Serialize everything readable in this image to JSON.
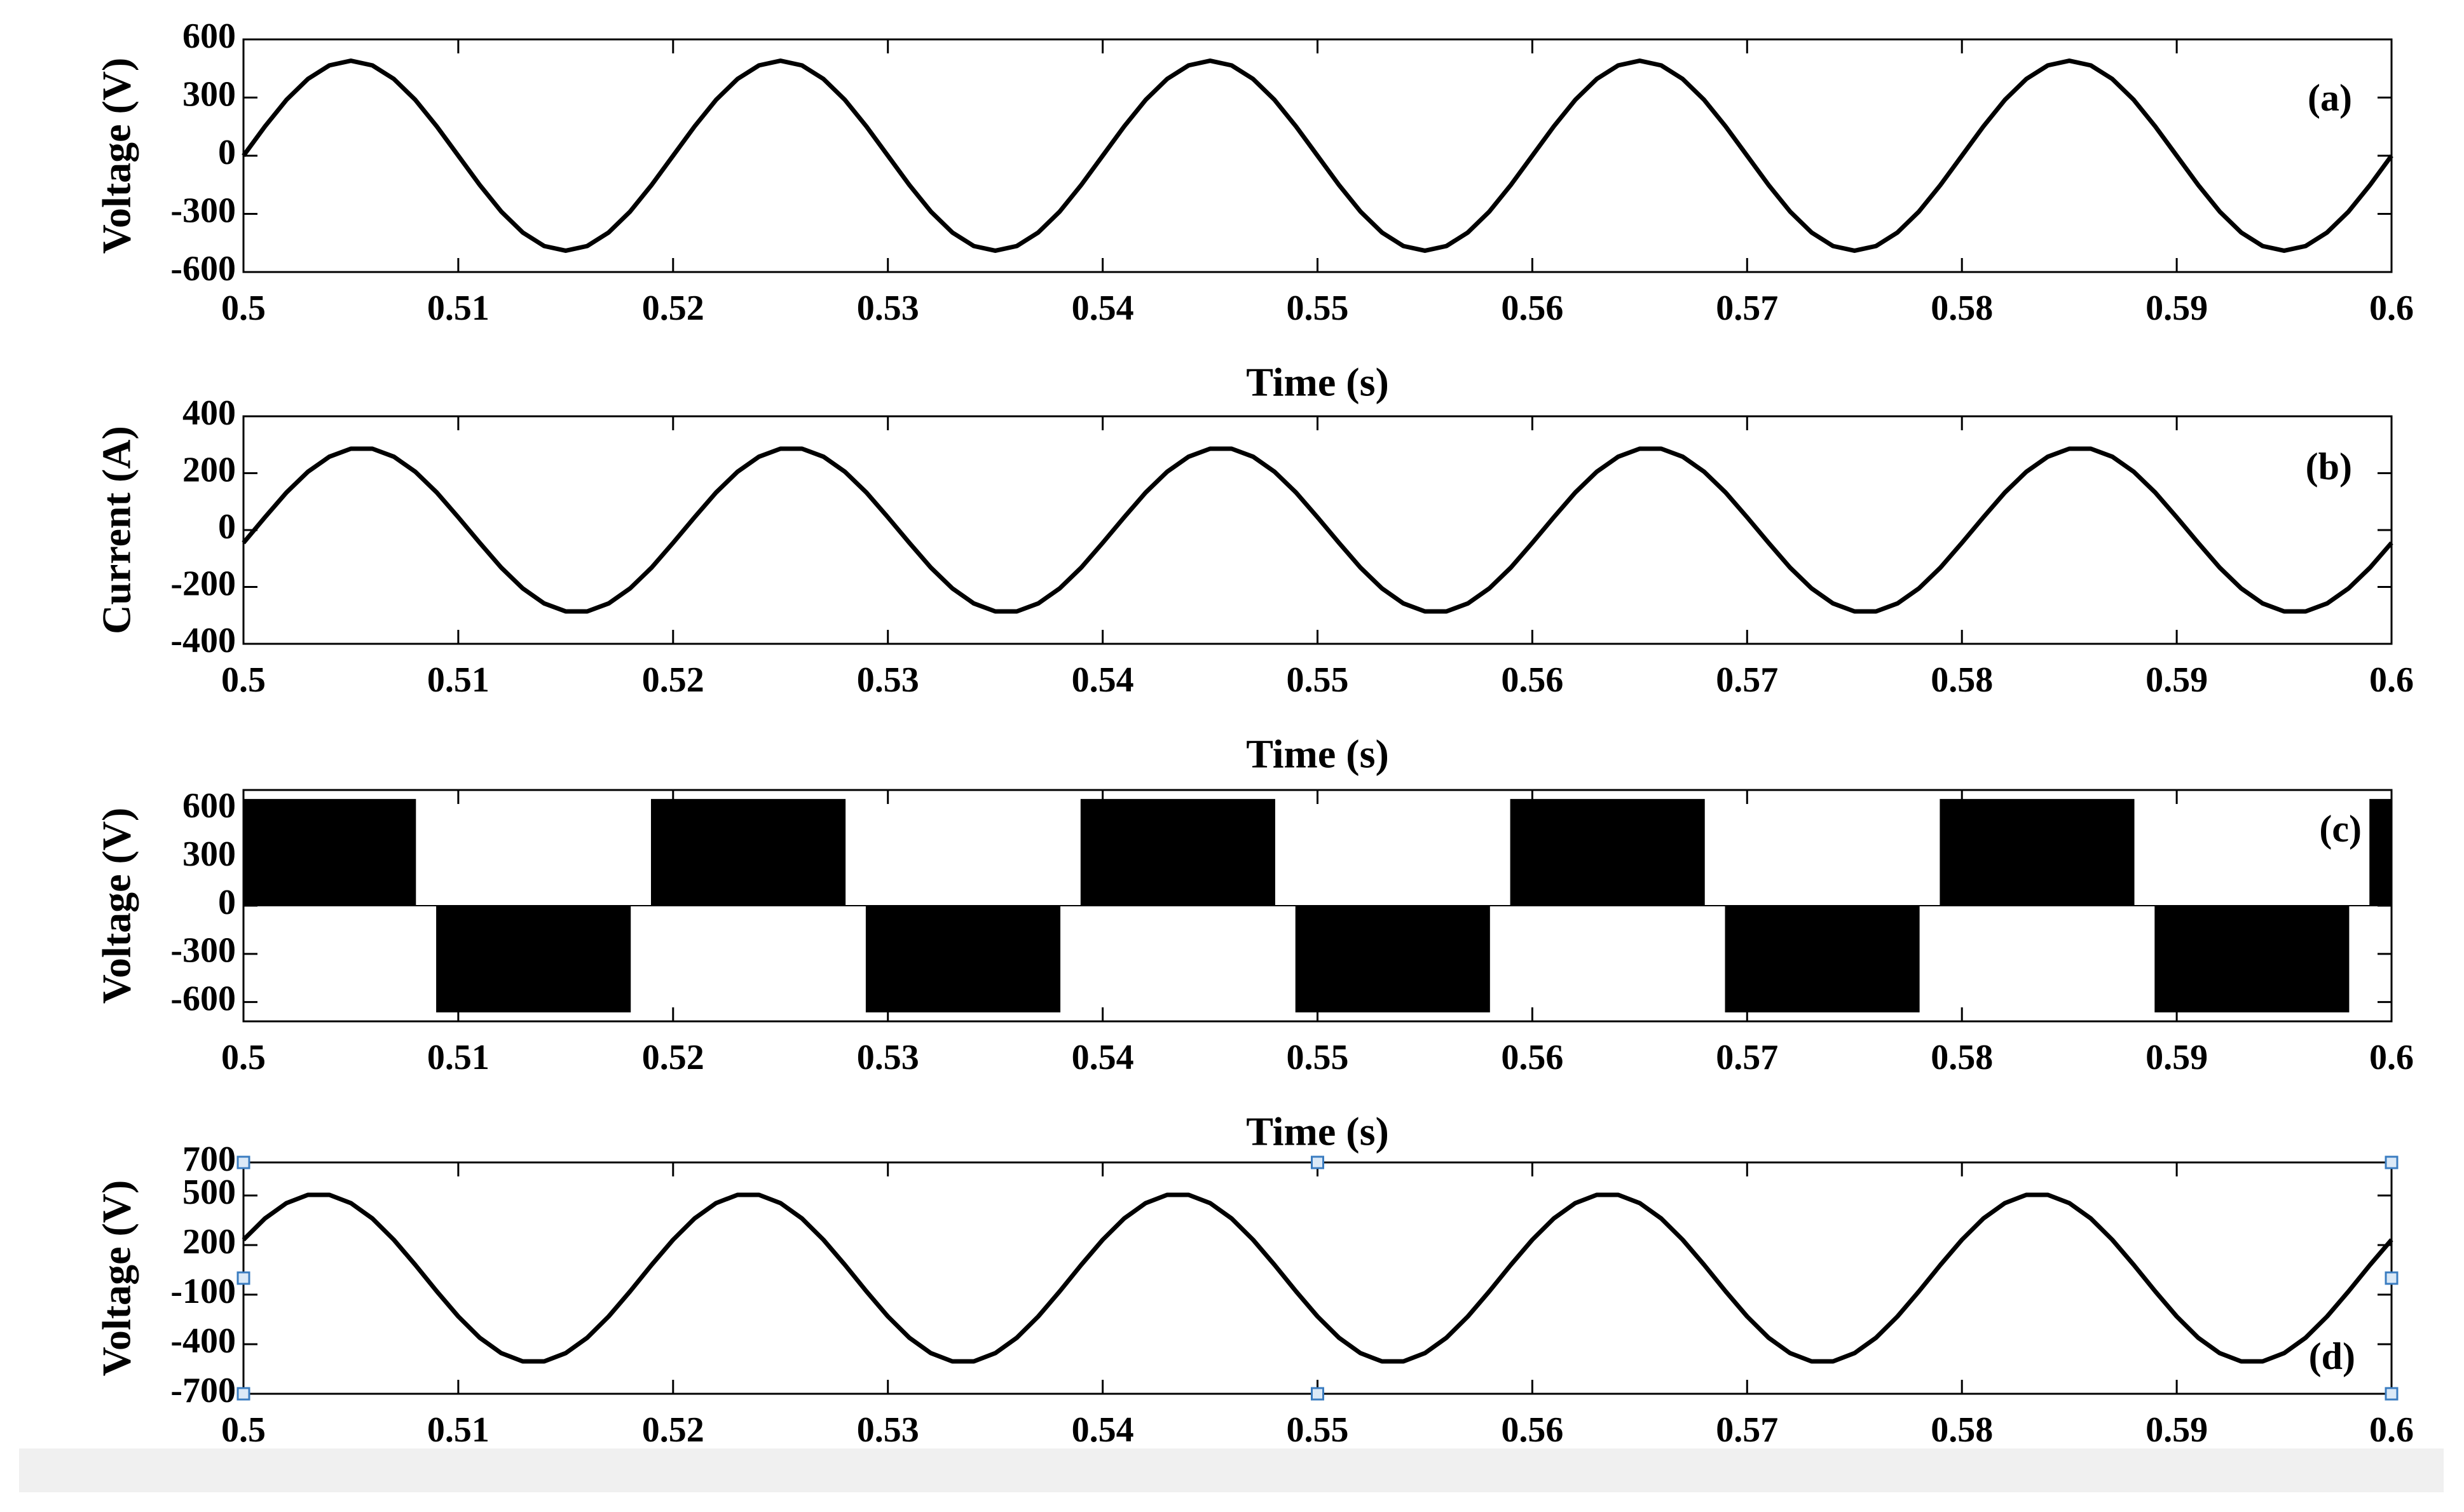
{
  "chart_data": [
    {
      "type": "line",
      "label": "(a)",
      "ylabel": "Voltage (V)",
      "xlabel": "Time (s)",
      "color": "#000000",
      "xlim": [
        0.5,
        0.6
      ],
      "xticks": [
        0.5,
        0.51,
        0.52,
        0.53,
        0.54,
        0.55,
        0.56,
        0.57,
        0.58,
        0.59,
        0.6
      ],
      "ylim": [
        -600,
        600
      ],
      "yticks": [
        -600,
        -300,
        0,
        300,
        600
      ],
      "x": [
        0.5,
        0.501,
        0.502,
        0.503,
        0.504,
        0.505,
        0.506,
        0.507,
        0.508,
        0.509,
        0.51,
        0.511,
        0.512,
        0.513,
        0.514,
        0.515,
        0.516,
        0.517,
        0.518,
        0.519,
        0.52,
        0.521,
        0.522,
        0.523,
        0.524,
        0.525,
        0.526,
        0.527,
        0.528,
        0.529,
        0.53,
        0.531,
        0.532,
        0.533,
        0.534,
        0.535,
        0.536,
        0.537,
        0.538,
        0.539,
        0.54,
        0.541,
        0.542,
        0.543,
        0.544,
        0.545,
        0.546,
        0.547,
        0.548,
        0.549,
        0.55,
        0.551,
        0.552,
        0.553,
        0.554,
        0.555,
        0.556,
        0.557,
        0.558,
        0.559,
        0.56,
        0.561,
        0.562,
        0.563,
        0.564,
        0.565,
        0.566,
        0.567,
        0.568,
        0.569,
        0.57,
        0.571,
        0.572,
        0.573,
        0.574,
        0.575,
        0.576,
        0.577,
        0.578,
        0.579,
        0.58,
        0.581,
        0.582,
        0.583,
        0.584,
        0.585,
        0.586,
        0.587,
        0.588,
        0.589,
        0.59,
        0.591,
        0.592,
        0.593,
        0.594,
        0.595,
        0.596,
        0.597,
        0.598,
        0.599,
        0.6
      ],
      "values": [
        0,
        151,
        288,
        396,
        466,
        490,
        466,
        396,
        288,
        151,
        0,
        -151,
        -288,
        -396,
        -466,
        -490,
        -466,
        -396,
        -288,
        -151,
        0,
        151,
        288,
        396,
        466,
        490,
        466,
        396,
        288,
        151,
        0,
        -151,
        -288,
        -396,
        -466,
        -490,
        -466,
        -396,
        -288,
        -151,
        0,
        151,
        288,
        396,
        466,
        490,
        466,
        396,
        288,
        151,
        0,
        -151,
        -288,
        -396,
        -466,
        -490,
        -466,
        -396,
        -288,
        -151,
        0,
        151,
        288,
        396,
        466,
        490,
        466,
        396,
        288,
        151,
        0,
        -151,
        -288,
        -396,
        -466,
        -490,
        -466,
        -396,
        -288,
        -151,
        0,
        151,
        288,
        396,
        466,
        490,
        466,
        396,
        288,
        151,
        0,
        -151,
        -288,
        -396,
        -466,
        -490,
        -466,
        -396,
        -288,
        -151,
        0
      ]
    },
    {
      "type": "line",
      "label": "(b)",
      "ylabel": "Current (A)",
      "xlabel": "Time (s)",
      "color": "#000000",
      "xlim": [
        0.5,
        0.6
      ],
      "xticks": [
        0.5,
        0.51,
        0.52,
        0.53,
        0.54,
        0.55,
        0.56,
        0.57,
        0.58,
        0.59,
        0.6
      ],
      "ylim": [
        -400,
        400
      ],
      "yticks": [
        -400,
        -200,
        0,
        200,
        400
      ],
      "x": [
        0.5,
        0.501,
        0.502,
        0.503,
        0.504,
        0.505,
        0.506,
        0.507,
        0.508,
        0.509,
        0.51,
        0.511,
        0.512,
        0.513,
        0.514,
        0.515,
        0.516,
        0.517,
        0.518,
        0.519,
        0.52,
        0.521,
        0.522,
        0.523,
        0.524,
        0.525,
        0.526,
        0.527,
        0.528,
        0.529,
        0.53,
        0.531,
        0.532,
        0.533,
        0.534,
        0.535,
        0.536,
        0.537,
        0.538,
        0.539,
        0.54,
        0.541,
        0.542,
        0.543,
        0.544,
        0.545,
        0.546,
        0.547,
        0.548,
        0.549,
        0.55,
        0.551,
        0.552,
        0.553,
        0.554,
        0.555,
        0.556,
        0.557,
        0.558,
        0.559,
        0.56,
        0.561,
        0.562,
        0.563,
        0.564,
        0.565,
        0.566,
        0.567,
        0.568,
        0.569,
        0.57,
        0.571,
        0.572,
        0.573,
        0.574,
        0.575,
        0.576,
        0.577,
        0.578,
        0.579,
        0.58,
        0.581,
        0.582,
        0.583,
        0.584,
        0.585,
        0.586,
        0.587,
        0.588,
        0.589,
        0.59,
        0.591,
        0.592,
        0.593,
        0.594,
        0.595,
        0.596,
        0.597,
        0.598,
        0.599,
        0.6
      ],
      "values": [
        -45,
        45,
        132,
        205,
        258,
        286,
        286,
        258,
        205,
        132,
        45,
        -45,
        -132,
        -205,
        -258,
        -286,
        -286,
        -258,
        -205,
        -132,
        -45,
        45,
        132,
        205,
        258,
        286,
        286,
        258,
        205,
        132,
        45,
        -45,
        -132,
        -205,
        -258,
        -286,
        -286,
        -258,
        -205,
        -132,
        -45,
        45,
        132,
        205,
        258,
        286,
        286,
        258,
        205,
        132,
        45,
        -45,
        -132,
        -205,
        -258,
        -286,
        -286,
        -258,
        -205,
        -132,
        -45,
        45,
        132,
        205,
        258,
        286,
        286,
        258,
        205,
        132,
        45,
        -45,
        -132,
        -205,
        -258,
        -286,
        -286,
        -258,
        -205,
        -132,
        -45,
        45,
        132,
        205,
        258,
        286,
        286,
        258,
        205,
        132,
        45,
        -45,
        -132,
        -205,
        -258,
        -286,
        -286,
        -258,
        -205,
        -132,
        -45
      ]
    },
    {
      "type": "area",
      "label": "(c)",
      "ylabel": "Voltage (V)",
      "xlabel": "Time (s)",
      "color": "#000000",
      "xlim": [
        0.5,
        0.6
      ],
      "xticks": [
        0.5,
        0.51,
        0.52,
        0.53,
        0.54,
        0.55,
        0.56,
        0.57,
        0.58,
        0.59,
        0.6
      ],
      "ylim": [
        -720,
        720
      ],
      "yticks": [
        -600,
        -300,
        0,
        300,
        600
      ],
      "x": [
        0.5,
        0.5,
        0.508,
        0.508,
        0.509,
        0.509,
        0.518,
        0.518,
        0.519,
        0.519,
        0.528,
        0.528,
        0.529,
        0.529,
        0.538,
        0.538,
        0.539,
        0.539,
        0.548,
        0.548,
        0.549,
        0.549,
        0.558,
        0.558,
        0.559,
        0.559,
        0.568,
        0.568,
        0.569,
        0.569,
        0.578,
        0.578,
        0.579,
        0.579,
        0.588,
        0.588,
        0.589,
        0.589,
        0.598,
        0.598,
        0.599,
        0.599,
        0.6,
        0.6
      ],
      "values": [
        0,
        660,
        660,
        0,
        0,
        -660,
        -660,
        0,
        0,
        660,
        660,
        0,
        0,
        -660,
        -660,
        0,
        0,
        660,
        660,
        0,
        0,
        -660,
        -660,
        0,
        0,
        660,
        660,
        0,
        0,
        -660,
        -660,
        0,
        0,
        660,
        660,
        0,
        0,
        -660,
        -660,
        0,
        0,
        660,
        660,
        0
      ]
    },
    {
      "type": "line",
      "label": "(d)",
      "ylabel": "Voltage (V)",
      "color": "#000000",
      "xlim": [
        0.5,
        0.6
      ],
      "xticks": [
        0.5,
        0.51,
        0.52,
        0.53,
        0.54,
        0.55,
        0.56,
        0.57,
        0.58,
        0.59,
        0.6
      ],
      "ylim": [
        -700,
        700
      ],
      "yticks": [
        -700,
        -400,
        -100,
        200,
        500,
        700
      ],
      "x": [
        0.5,
        0.501,
        0.502,
        0.503,
        0.504,
        0.505,
        0.506,
        0.507,
        0.508,
        0.509,
        0.51,
        0.511,
        0.512,
        0.513,
        0.514,
        0.515,
        0.516,
        0.517,
        0.518,
        0.519,
        0.52,
        0.521,
        0.522,
        0.523,
        0.524,
        0.525,
        0.526,
        0.527,
        0.528,
        0.529,
        0.53,
        0.531,
        0.532,
        0.533,
        0.534,
        0.535,
        0.536,
        0.537,
        0.538,
        0.539,
        0.54,
        0.541,
        0.542,
        0.543,
        0.544,
        0.545,
        0.546,
        0.547,
        0.548,
        0.549,
        0.55,
        0.551,
        0.552,
        0.553,
        0.554,
        0.555,
        0.556,
        0.557,
        0.558,
        0.559,
        0.56,
        0.561,
        0.562,
        0.563,
        0.564,
        0.565,
        0.566,
        0.567,
        0.568,
        0.569,
        0.57,
        0.571,
        0.572,
        0.573,
        0.574,
        0.575,
        0.576,
        0.577,
        0.578,
        0.579,
        0.58,
        0.581,
        0.582,
        0.583,
        0.584,
        0.585,
        0.586,
        0.587,
        0.588,
        0.589,
        0.59,
        0.591,
        0.592,
        0.593,
        0.594,
        0.595,
        0.596,
        0.597,
        0.598,
        0.599,
        0.6
      ],
      "values": [
        232,
        361,
        454,
        504,
        504,
        454,
        361,
        232,
        80,
        -80,
        -232,
        -361,
        -454,
        -504,
        -504,
        -454,
        -361,
        -232,
        -80,
        80,
        232,
        361,
        454,
        504,
        504,
        454,
        361,
        232,
        80,
        -80,
        -232,
        -361,
        -454,
        -504,
        -504,
        -454,
        -361,
        -232,
        -80,
        80,
        232,
        361,
        454,
        504,
        504,
        454,
        361,
        232,
        80,
        -80,
        -232,
        -361,
        -454,
        -504,
        -504,
        -454,
        -361,
        -232,
        -80,
        80,
        232,
        361,
        454,
        504,
        504,
        454,
        361,
        232,
        80,
        -80,
        -232,
        -361,
        -454,
        -504,
        -504,
        -454,
        -361,
        -232,
        -80,
        80,
        232,
        361,
        454,
        504,
        504,
        454,
        361,
        232,
        80,
        -80,
        -232,
        -361,
        -454,
        -504,
        -504,
        -454,
        -361,
        -232,
        -80,
        80,
        232
      ]
    }
  ]
}
